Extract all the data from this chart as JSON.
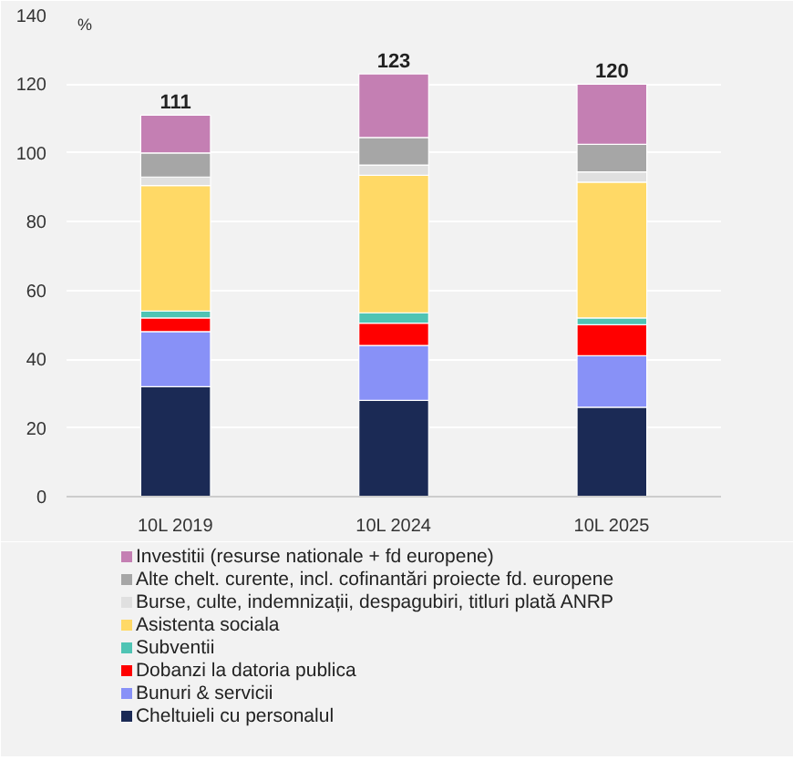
{
  "chart_data": {
    "type": "bar",
    "stacked": true,
    "ylabel": "%",
    "categories": [
      "10L 2019",
      "10L 2024",
      "10L 2025"
    ],
    "series": [
      {
        "name": "Cheltuieli cu personalul",
        "color": "#1b2a55",
        "values": [
          32,
          28,
          26
        ]
      },
      {
        "name": "Bunuri & servicii",
        "color": "#8891f7",
        "values": [
          16,
          16,
          15
        ]
      },
      {
        "name": "Dobanzi la datoria publica",
        "color": "#ff0000",
        "values": [
          4,
          6.5,
          9
        ]
      },
      {
        "name": "Subventii",
        "color": "#4fc4b4",
        "values": [
          2,
          3,
          2
        ]
      },
      {
        "name": "Asistenta sociala",
        "color": "#ffd966",
        "values": [
          36.5,
          40,
          39.5
        ]
      },
      {
        "name": "Burse, culte, indemnizații, despagubiri, titluri plată ANRP",
        "color": "#e0e0e0",
        "values": [
          2.5,
          3,
          3
        ]
      },
      {
        "name": "Alte chelt. curente, incl. cofinantări proiecte fd. europene",
        "color": "#a6a6a6",
        "values": [
          7,
          8,
          8
        ]
      },
      {
        "name": "Investitii (resurse nationale + fd europene)",
        "color": "#c47fb3",
        "values": [
          11,
          18.5,
          17.5
        ]
      }
    ],
    "totals": [
      "111",
      "123",
      "120"
    ],
    "ylim": [
      0,
      140
    ],
    "yticks": [
      0,
      20,
      40,
      60,
      80,
      100,
      120,
      140
    ],
    "grid": "y",
    "legend": "bottom"
  }
}
